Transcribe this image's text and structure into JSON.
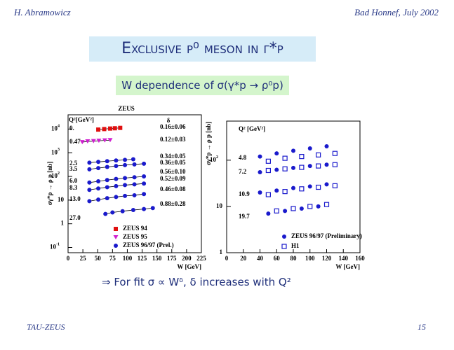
{
  "header": {
    "left": "H. Abramowicz",
    "right": "Bad Honnef, July 2002"
  },
  "title": "Exclusive ρ⁰ meson in γ*p",
  "subtitle": "W dependence of σ(γ*p → ρ⁰p)",
  "conclusion": "⇒ For fit σ ∝ Wᵟ, δ increases with Q²",
  "footer": {
    "left": "TAU-ZEUS",
    "right": "15"
  },
  "chart_data": [
    {
      "type": "scatter",
      "title": "ZEUS",
      "x_label": "W [GeV]",
      "y_label": "σγ*p → ρ p [nb]",
      "q2_header": "Q²[GeV²]",
      "delta_header": "δ",
      "log_y": true,
      "xlim": [
        0,
        225
      ],
      "xticks": [
        0,
        25,
        50,
        75,
        100,
        125,
        150,
        175,
        200,
        225
      ],
      "ylim": [
        0.06,
        40000
      ],
      "yticks": [
        {
          "value": 0.1,
          "label": "10",
          "exponent": "-1"
        },
        1,
        10,
        {
          "value": 100,
          "label": "10",
          "exponent": "2"
        },
        {
          "value": 1000,
          "label": "10",
          "exponent": "3"
        },
        {
          "value": 10000,
          "label": "10",
          "exponent": "4"
        }
      ],
      "series": [
        {
          "name": "ZEUS 94",
          "color": "#e01010",
          "marker": "square",
          "groups": [
            {
              "q2": "0.",
              "delta": "0.16±0.06",
              "x": [
                51,
                61,
                71,
                79,
                88
              ],
              "values": [
                9500,
                10000,
                10500,
                10800,
                11200
              ]
            }
          ]
        },
        {
          "name": "ZEUS 95",
          "color": "#d020d0",
          "marker": "triangle",
          "groups": [
            {
              "q2": "0.47",
              "delta": "0.12±0.03",
              "x": [
                24,
                33,
                43,
                52,
                62,
                71
              ],
              "values": [
                2800,
                3000,
                3100,
                3200,
                3300,
                3400
              ]
            }
          ]
        },
        {
          "name": "ZEUS 96/97 (Prel.)",
          "color": "#1a1acc",
          "marker": "circle",
          "groups": [
            {
              "q2": "2.5",
              "delta": "0.34±0.05",
              "x": [
                36,
                51,
                66,
                81,
                96,
                110
              ],
              "values": [
                380,
                410,
                440,
                470,
                500,
                530
              ]
            },
            {
              "q2": "3.5",
              "delta": "0.36±0.05",
              "x": [
                36,
                51,
                66,
                81,
                96,
                112,
                128
              ],
              "values": [
                200,
                225,
                250,
                275,
                300,
                320,
                345
              ]
            },
            {
              "q2": "6.0",
              "delta": "0.56±0.10",
              "x": [
                36,
                51,
                66,
                81,
                96,
                112,
                128
              ],
              "values": [
                55,
                62,
                70,
                78,
                85,
                92,
                100
              ]
            },
            {
              "q2": "8.3",
              "delta": "0.52±0.09",
              "x": [
                36,
                51,
                66,
                81,
                96,
                112,
                128
              ],
              "values": [
                27,
                31,
                35,
                39,
                43,
                46,
                50
              ]
            },
            {
              "q2": "13.0",
              "delta": "0.46±0.08",
              "x": [
                36,
                51,
                66,
                81,
                96,
                112,
                128
              ],
              "values": [
                9,
                10.5,
                12,
                13.5,
                15,
                16,
                18
              ]
            },
            {
              "q2": "27.0",
              "delta": "0.88±0.28",
              "x": [
                63,
                75,
                92,
                110,
                128,
                143
              ],
              "values": [
                2.6,
                3,
                3.4,
                3.8,
                4.2,
                4.6
              ]
            }
          ]
        }
      ]
    },
    {
      "type": "scatter",
      "x_label": "W [GeV]",
      "y_label": "σγ*p → ρ p [nb]",
      "q2_header": "Q² [GeV²]",
      "log_y": true,
      "xlim": [
        0,
        160
      ],
      "xticks": [
        0,
        20,
        40,
        60,
        80,
        100,
        120,
        140,
        160
      ],
      "ylim": [
        1,
        700
      ],
      "yticks": [
        1,
        10,
        {
          "value": 100,
          "label": "10",
          "exponent": "2"
        }
      ],
      "series": [
        {
          "name": "ZEUS 96/97 (Preliminary)",
          "color": "#1a1acc",
          "marker": "circle",
          "groups": [
            {
              "q2": "4.8",
              "x": [
                40,
                60,
                80,
                100,
                120
              ],
              "values": [
                120,
                140,
                160,
                180,
                200
              ]
            },
            {
              "q2": "7.2",
              "x": [
                40,
                60,
                80,
                100,
                120
              ],
              "values": [
                55,
                62,
                68,
                75,
                80
              ]
            },
            {
              "q2": "10.9",
              "x": [
                40,
                60,
                80,
                100,
                120
              ],
              "values": [
                20,
                22,
                25,
                27,
                30
              ]
            },
            {
              "q2": "19.7",
              "x": [
                50,
                70,
                90,
                110
              ],
              "values": [
                7,
                8,
                9,
                10
              ]
            }
          ]
        },
        {
          "name": "H1",
          "color": "#1a1acc",
          "marker": "open-square",
          "groups": [
            {
              "q2": "4.8",
              "x": [
                50,
                70,
                90,
                110,
                130
              ],
              "values": [
                95,
                110,
                120,
                130,
                140
              ]
            },
            {
              "q2": "7.2",
              "x": [
                50,
                70,
                90,
                110,
                130
              ],
              "values": [
                60,
                65,
                70,
                75,
                80
              ]
            },
            {
              "q2": "10.9",
              "x": [
                50,
                70,
                90,
                110,
                130
              ],
              "values": [
                18,
                21,
                24,
                26,
                28
              ]
            },
            {
              "q2": "19.7",
              "x": [
                60,
                80,
                100,
                120
              ],
              "values": [
                8,
                9,
                10,
                11
              ]
            }
          ]
        }
      ]
    }
  ]
}
